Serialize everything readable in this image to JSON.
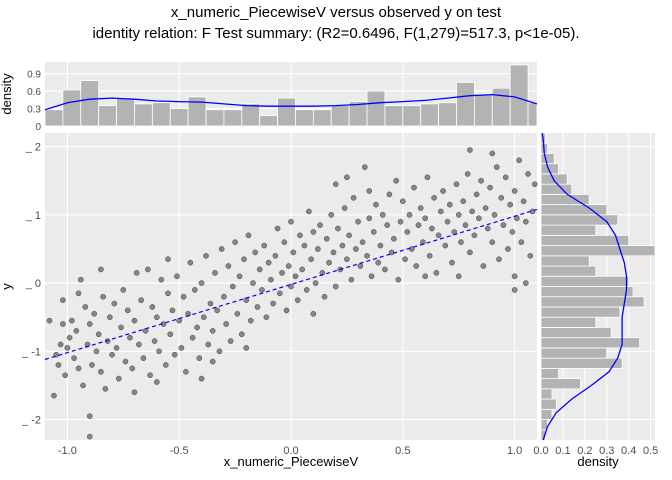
{
  "title": "x_numeric_PiecewiseV versus observed y on test",
  "subtitle": "identity relation: F Test summary: (R2=0.6496, F(1,279)=517.3, p<1e-05).",
  "chart_data": [
    {
      "type": "scatter",
      "panel": "main",
      "xlabel": "x_numeric_PiecewiseV",
      "ylabel": "y",
      "xlim": [
        -1.1,
        1.1
      ],
      "ylim": [
        -2.3,
        2.2
      ],
      "xticks": [
        -1.0,
        -0.5,
        0.0,
        0.5,
        1.0
      ],
      "xtick_labels": [
        "-1.0",
        "-0.5",
        "0.0",
        "0.5",
        "1.0"
      ],
      "yticks": [
        -2,
        -1,
        0,
        1,
        2
      ],
      "ytick_labels": [
        "_ -2",
        "_ -1",
        "_ 0",
        "_ 1",
        "_ 2"
      ],
      "point_color": "#333333",
      "fit_line": {
        "style": "dashed",
        "color": "#0000ff",
        "x": [
          -1.1,
          1.1
        ],
        "y": [
          -1.12,
          1.08
        ]
      },
      "points": [
        [
          -1.08,
          -0.55
        ],
        [
          -1.06,
          -1.65
        ],
        [
          -1.05,
          -1.05
        ],
        [
          -1.04,
          -1.2
        ],
        [
          -1.03,
          -0.9
        ],
        [
          -1.02,
          -0.6
        ],
        [
          -1.01,
          -1.35
        ],
        [
          -1.0,
          -0.95
        ],
        [
          -0.99,
          -0.8
        ],
        [
          -0.98,
          -0.55
        ],
        [
          -0.97,
          -1.1
        ],
        [
          -0.96,
          -0.7
        ],
        [
          -0.95,
          -1.25
        ],
        [
          -0.94,
          0.05
        ],
        [
          -0.93,
          -1.5
        ],
        [
          -0.92,
          -0.35
        ],
        [
          -0.91,
          -0.9
        ],
        [
          -0.9,
          -1.95
        ],
        [
          -0.9,
          -0.6
        ],
        [
          -0.89,
          -1.2
        ],
        [
          -0.88,
          -0.45
        ],
        [
          -0.87,
          -1.0
        ],
        [
          -0.86,
          -0.75
        ],
        [
          -0.85,
          -1.3
        ],
        [
          -0.84,
          -0.2
        ],
        [
          -0.83,
          -1.55
        ],
        [
          -0.82,
          -0.85
        ],
        [
          -0.81,
          -0.5
        ],
        [
          -0.8,
          -1.05
        ],
        [
          -0.79,
          -0.3
        ],
        [
          -0.78,
          -0.95
        ],
        [
          -0.77,
          -1.4
        ],
        [
          -0.76,
          -0.65
        ],
        [
          -0.75,
          -0.1
        ],
        [
          -0.74,
          -1.15
        ],
        [
          -0.73,
          -0.4
        ],
        [
          -0.72,
          -0.8
        ],
        [
          -0.71,
          -1.25
        ],
        [
          -0.7,
          -0.55
        ],
        [
          -0.69,
          0.15
        ],
        [
          -0.68,
          -0.9
        ],
        [
          -0.67,
          -0.25
        ],
        [
          -0.66,
          -1.1
        ],
        [
          -0.65,
          -0.7
        ],
        [
          -0.64,
          0.2
        ],
        [
          -0.63,
          -1.35
        ],
        [
          -0.62,
          -0.35
        ],
        [
          -0.61,
          -0.85
        ],
        [
          -0.6,
          -0.5
        ],
        [
          -0.59,
          -1.0
        ],
        [
          -0.58,
          0.05
        ],
        [
          -0.57,
          -0.6
        ],
        [
          -0.56,
          -1.2
        ],
        [
          -0.55,
          -0.15
        ],
        [
          -0.54,
          -0.75
        ],
        [
          -0.53,
          -0.4
        ],
        [
          -0.52,
          -1.05
        ],
        [
          -0.51,
          0.1
        ],
        [
          -0.5,
          -0.55
        ],
        [
          -0.49,
          -0.95
        ],
        [
          -0.48,
          -0.2
        ],
        [
          -0.47,
          -1.3
        ],
        [
          -0.46,
          -0.45
        ],
        [
          -0.45,
          0.3
        ],
        [
          -0.44,
          -0.8
        ],
        [
          -0.43,
          -0.1
        ],
        [
          -0.42,
          -0.65
        ],
        [
          -0.41,
          -1.1
        ],
        [
          -0.4,
          0.0
        ],
        [
          -0.39,
          -0.5
        ],
        [
          -0.38,
          0.4
        ],
        [
          -0.37,
          -0.9
        ],
        [
          -0.36,
          -0.3
        ],
        [
          -0.35,
          -0.7
        ],
        [
          -0.34,
          0.15
        ],
        [
          -0.33,
          -0.4
        ],
        [
          -0.32,
          -1.0
        ],
        [
          -0.31,
          0.5
        ],
        [
          -0.3,
          -0.2
        ],
        [
          -0.29,
          -0.6
        ],
        [
          -0.28,
          0.25
        ],
        [
          -0.27,
          -0.85
        ],
        [
          -0.26,
          -0.05
        ],
        [
          -0.25,
          0.6
        ],
        [
          -0.24,
          -0.45
        ],
        [
          -0.23,
          0.1
        ],
        [
          -0.22,
          -0.75
        ],
        [
          -0.21,
          0.35
        ],
        [
          -0.2,
          -0.25
        ],
        [
          -0.19,
          0.7
        ],
        [
          -0.18,
          -0.55
        ],
        [
          -0.17,
          0.0
        ],
        [
          -0.16,
          0.45
        ],
        [
          -0.15,
          -0.35
        ],
        [
          -0.14,
          0.2
        ],
        [
          -0.13,
          -0.1
        ],
        [
          -0.12,
          0.55
        ],
        [
          -0.11,
          -0.5
        ],
        [
          -0.1,
          0.3
        ],
        [
          -0.09,
          0.05
        ],
        [
          -0.08,
          -0.3
        ],
        [
          -0.07,
          0.4
        ],
        [
          -0.06,
          0.8
        ],
        [
          -0.05,
          -0.15
        ],
        [
          -0.04,
          0.15
        ],
        [
          -0.03,
          0.6
        ],
        [
          -0.02,
          -0.4
        ],
        [
          -0.01,
          0.25
        ],
        [
          0.0,
          0.9
        ],
        [
          0.0,
          -0.05
        ],
        [
          0.01,
          0.45
        ],
        [
          0.02,
          0.1
        ],
        [
          0.03,
          -0.25
        ],
        [
          0.04,
          0.7
        ],
        [
          0.05,
          0.2
        ],
        [
          0.06,
          0.55
        ],
        [
          0.07,
          -0.1
        ],
        [
          0.08,
          1.05
        ],
        [
          0.09,
          0.35
        ],
        [
          0.1,
          0.75
        ],
        [
          0.11,
          0.0
        ],
        [
          0.12,
          0.5
        ],
        [
          0.13,
          0.85
        ],
        [
          0.14,
          0.15
        ],
        [
          0.15,
          -0.2
        ],
        [
          0.16,
          0.65
        ],
        [
          0.17,
          0.3
        ],
        [
          0.18,
          1.0
        ],
        [
          0.19,
          0.45
        ],
        [
          0.2,
          -0.05
        ],
        [
          0.21,
          0.8
        ],
        [
          0.22,
          0.2
        ],
        [
          0.23,
          0.55
        ],
        [
          0.24,
          1.1
        ],
        [
          0.25,
          0.35
        ],
        [
          0.26,
          0.7
        ],
        [
          0.27,
          0.05
        ],
        [
          0.28,
          1.25
        ],
        [
          0.29,
          0.5
        ],
        [
          0.3,
          0.9
        ],
        [
          0.31,
          0.25
        ],
        [
          0.32,
          0.6
        ],
        [
          0.33,
          1.7
        ],
        [
          0.34,
          0.4
        ],
        [
          0.35,
          0.95
        ],
        [
          0.36,
          0.1
        ],
        [
          0.37,
          0.75
        ],
        [
          0.38,
          1.15
        ],
        [
          0.39,
          0.3
        ],
        [
          0.4,
          0.55
        ],
        [
          0.41,
          1.0
        ],
        [
          0.42,
          0.2
        ],
        [
          0.43,
          0.85
        ],
        [
          0.44,
          1.3
        ],
        [
          0.45,
          0.45
        ],
        [
          0.46,
          0.65
        ],
        [
          0.47,
          1.5
        ],
        [
          0.48,
          0.05
        ],
        [
          0.49,
          0.9
        ],
        [
          0.5,
          1.2
        ],
        [
          0.51,
          0.35
        ],
        [
          0.52,
          0.75
        ],
        [
          0.53,
          1.0
        ],
        [
          0.54,
          0.5
        ],
        [
          0.55,
          1.4
        ],
        [
          0.56,
          0.25
        ],
        [
          0.57,
          0.85
        ],
        [
          0.58,
          1.1
        ],
        [
          0.59,
          0.6
        ],
        [
          0.6,
          0.95
        ],
        [
          0.61,
          1.55
        ],
        [
          0.62,
          0.4
        ],
        [
          0.63,
          0.8
        ],
        [
          0.64,
          1.25
        ],
        [
          0.65,
          0.15
        ],
        [
          0.66,
          0.7
        ],
        [
          0.67,
          1.05
        ],
        [
          0.68,
          1.35
        ],
        [
          0.69,
          0.55
        ],
        [
          0.7,
          0.9
        ],
        [
          0.71,
          1.15
        ],
        [
          0.72,
          0.3
        ],
        [
          0.73,
          0.75
        ],
        [
          0.74,
          1.45
        ],
        [
          0.75,
          1.0
        ],
        [
          0.76,
          0.6
        ],
        [
          0.77,
          1.2
        ],
        [
          0.78,
          0.85
        ],
        [
          0.79,
          1.6
        ],
        [
          0.8,
          0.45
        ],
        [
          0.81,
          1.05
        ],
        [
          0.82,
          0.7
        ],
        [
          0.83,
          1.3
        ],
        [
          0.84,
          0.95
        ],
        [
          0.85,
          1.5
        ],
        [
          0.86,
          0.25
        ],
        [
          0.87,
          1.1
        ],
        [
          0.88,
          0.8
        ],
        [
          0.89,
          1.4
        ],
        [
          0.9,
          0.6
        ],
        [
          0.91,
          1.0
        ],
        [
          0.92,
          1.7
        ],
        [
          0.93,
          0.35
        ],
        [
          0.94,
          1.25
        ],
        [
          0.95,
          0.85
        ],
        [
          0.96,
          1.55
        ],
        [
          0.97,
          0.5
        ],
        [
          0.98,
          1.15
        ],
        [
          0.99,
          0.75
        ],
        [
          1.0,
          1.35
        ],
        [
          1.0,
          0.1
        ],
        [
          1.01,
          0.95
        ],
        [
          1.02,
          1.8
        ],
        [
          1.03,
          0.6
        ],
        [
          1.04,
          1.2
        ],
        [
          1.05,
          0.9
        ],
        [
          1.06,
          1.6
        ],
        [
          1.07,
          0.4
        ],
        [
          1.08,
          1.05
        ],
        [
          1.09,
          1.45
        ],
        [
          -0.9,
          -2.25
        ],
        [
          -0.95,
          -0.15
        ],
        [
          -0.85,
          0.2
        ],
        [
          -0.6,
          -1.45
        ],
        [
          -0.55,
          0.35
        ],
        [
          -0.35,
          -1.15
        ],
        [
          -0.2,
          -0.95
        ],
        [
          0.1,
          -0.45
        ],
        [
          0.2,
          1.45
        ],
        [
          0.35,
          1.35
        ],
        [
          0.6,
          0.1
        ],
        [
          0.75,
          0.1
        ],
        [
          0.9,
          1.9
        ],
        [
          1.0,
          -0.1
        ],
        [
          1.05,
          0.0
        ],
        [
          -1.02,
          -0.25
        ],
        [
          -0.7,
          -1.6
        ],
        [
          -0.4,
          -1.4
        ],
        [
          0.25,
          1.55
        ],
        [
          0.8,
          1.95
        ]
      ]
    },
    {
      "type": "bar",
      "panel": "top-marginal",
      "ylabel": "density",
      "ylim": [
        0,
        1.1
      ],
      "yticks": [
        0,
        0.3,
        0.6,
        0.9
      ],
      "ytick_labels": [
        "0",
        "0.3",
        "0.6",
        "0.9"
      ],
      "bin_edges": [
        -1.1,
        -1.02,
        -0.94,
        -0.86,
        -0.78,
        -0.7,
        -0.62,
        -0.54,
        -0.46,
        -0.38,
        -0.3,
        -0.22,
        -0.14,
        -0.06,
        0.02,
        0.1,
        0.18,
        0.26,
        0.34,
        0.42,
        0.5,
        0.58,
        0.66,
        0.74,
        0.82,
        0.9,
        0.98,
        1.06,
        1.1
      ],
      "values": [
        0.28,
        0.62,
        0.78,
        0.35,
        0.48,
        0.38,
        0.4,
        0.3,
        0.5,
        0.28,
        0.28,
        0.38,
        0.18,
        0.48,
        0.28,
        0.28,
        0.35,
        0.42,
        0.6,
        0.35,
        0.35,
        0.38,
        0.4,
        0.75,
        0.55,
        0.65,
        1.05,
        0.4
      ],
      "density_color": "#0000ff",
      "density": {
        "x": [
          -1.1,
          -1.0,
          -0.9,
          -0.8,
          -0.7,
          -0.6,
          -0.5,
          -0.4,
          -0.3,
          -0.2,
          -0.1,
          0.0,
          0.1,
          0.2,
          0.3,
          0.4,
          0.5,
          0.6,
          0.7,
          0.8,
          0.9,
          1.0,
          1.1
        ],
        "y": [
          0.28,
          0.4,
          0.46,
          0.48,
          0.46,
          0.43,
          0.42,
          0.41,
          0.38,
          0.35,
          0.34,
          0.34,
          0.34,
          0.35,
          0.37,
          0.4,
          0.42,
          0.44,
          0.48,
          0.52,
          0.54,
          0.5,
          0.38
        ]
      }
    },
    {
      "type": "bar",
      "panel": "right-marginal",
      "orientation": "horizontal",
      "xlabel": "density",
      "xlim": [
        0,
        0.52
      ],
      "xticks": [
        0.0,
        0.1,
        0.2,
        0.3,
        0.4,
        0.5
      ],
      "xtick_labels": [
        "0.0",
        "0.1",
        "0.2",
        "0.3",
        "0.4",
        "0.5"
      ],
      "bin_edges": [
        -2.3,
        -2.15,
        -2.0,
        -1.85,
        -1.7,
        -1.55,
        -1.4,
        -1.25,
        -1.1,
        -0.95,
        -0.8,
        -0.65,
        -0.5,
        -0.35,
        -0.2,
        -0.05,
        0.1,
        0.25,
        0.4,
        0.55,
        0.7,
        0.85,
        1.0,
        1.15,
        1.3,
        1.45,
        1.6,
        1.75,
        1.9,
        2.05,
        2.2
      ],
      "values": [
        0.02,
        0.03,
        0.05,
        0.07,
        0.05,
        0.18,
        0.08,
        0.37,
        0.3,
        0.45,
        0.32,
        0.25,
        0.36,
        0.47,
        0.42,
        0.4,
        0.25,
        0.22,
        0.52,
        0.4,
        0.25,
        0.35,
        0.3,
        0.22,
        0.14,
        0.12,
        0.08,
        0.06,
        0.03,
        0.02
      ],
      "density_color": "#0000ff",
      "density": {
        "y": [
          -2.3,
          -2.1,
          -1.9,
          -1.7,
          -1.5,
          -1.3,
          -1.1,
          -0.9,
          -0.7,
          -0.5,
          -0.3,
          -0.1,
          0.1,
          0.3,
          0.5,
          0.7,
          0.9,
          1.1,
          1.3,
          1.5,
          1.7,
          1.9,
          2.1,
          2.2
        ],
        "x": [
          0.01,
          0.03,
          0.07,
          0.14,
          0.23,
          0.31,
          0.35,
          0.37,
          0.37,
          0.37,
          0.38,
          0.39,
          0.39,
          0.38,
          0.36,
          0.34,
          0.3,
          0.22,
          0.12,
          0.06,
          0.03,
          0.015,
          0.01,
          0.005
        ]
      }
    }
  ]
}
